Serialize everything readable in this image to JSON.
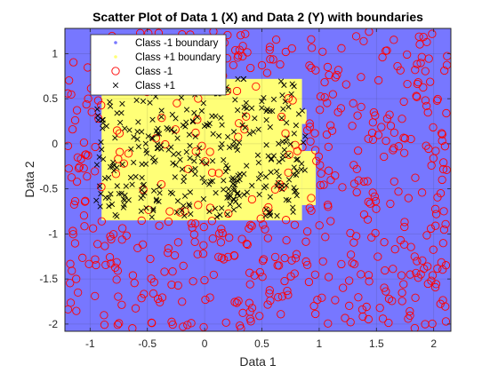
{
  "chart_data": {
    "type": "scatter",
    "title": "Scatter Plot of Data 1 (X) and Data 2 (Y) with boundaries",
    "xlabel": "Data 1",
    "ylabel": "Data 2",
    "xlim": [
      -1.22,
      2.15
    ],
    "ylim": [
      -2.08,
      1.28
    ],
    "xticks": [
      -1,
      -0.5,
      0,
      0.5,
      1,
      1.5,
      2
    ],
    "xtick_labels": [
      "-1",
      "-0.5",
      "0",
      "0.5",
      "1",
      "1.5",
      "2"
    ],
    "yticks": [
      -2,
      -1.5,
      -1,
      -0.5,
      0,
      0.5,
      1
    ],
    "ytick_labels": [
      "-2",
      "-1.5",
      "-1",
      "-0.5",
      "0",
      "0.5",
      "1"
    ],
    "grid": true,
    "legend_position": "top-left",
    "legend": [
      {
        "label": "Class -1 boundary",
        "marker": "dot",
        "color": "#7777ff"
      },
      {
        "label": "Class +1 boundary",
        "marker": "dot",
        "color": "#ffff77"
      },
      {
        "label": "Class -1",
        "marker": "circle",
        "color": "#ff0000"
      },
      {
        "label": "Class +1",
        "marker": "x",
        "color": "#000000"
      }
    ],
    "colors": {
      "class_neg_region": "#7777ff",
      "class_pos_region": "#ffff77",
      "class_neg_marker": "#ff0000",
      "class_pos_marker": "#000000"
    },
    "boundary_regions": [
      {
        "class": "+1",
        "x": [
          -0.9,
          0.85
        ],
        "y": [
          -0.85,
          0.72
        ]
      },
      {
        "class": "+1",
        "x": [
          0.85,
          0.97
        ],
        "y": [
          -0.68,
          -0.08
        ]
      },
      {
        "class": "+1",
        "x": [
          0.85,
          0.89
        ],
        "y": [
          0.22,
          0.38
        ]
      }
    ],
    "series_generation": {
      "class_pos": {
        "count": 360,
        "x_range": [
          -0.95,
          0.88
        ],
        "y_range": [
          -0.82,
          0.72
        ]
      },
      "class_neg": {
        "count": 560,
        "x_range": [
          -1.2,
          2.12
        ],
        "y_range": [
          -2.05,
          1.25
        ]
      }
    }
  }
}
